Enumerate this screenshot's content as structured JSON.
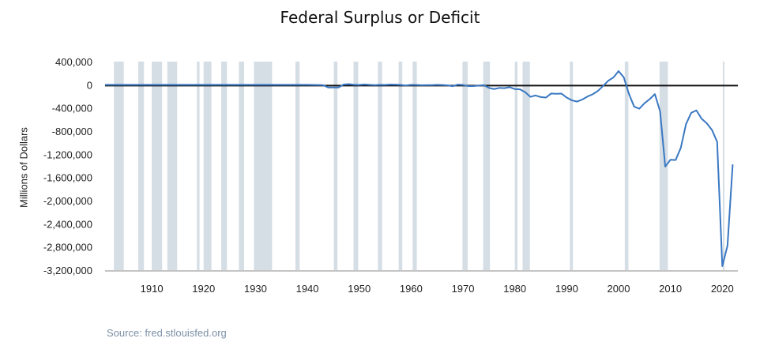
{
  "title": "Federal Surplus or Deficit",
  "source": "Source: fred.stlouisfed.org",
  "colors": {
    "line": "#3a78c2",
    "recession": "#d5dde5",
    "zero_line": "#111111"
  },
  "chart_data": {
    "type": "line",
    "title": "Federal Surplus or Deficit",
    "xlabel": "",
    "ylabel": "Millions of Dollars",
    "xlim": [
      1901,
      2023
    ],
    "ylim": [
      -3200000,
      400000
    ],
    "y_ticks": [
      400000,
      0,
      -400000,
      -800000,
      -1200000,
      -1600000,
      -2000000,
      -2400000,
      -2800000,
      -3200000
    ],
    "y_tick_labels": [
      "400,000",
      "0",
      "-400,000",
      "-800,000",
      "-1,200,000",
      "-1,600,000",
      "-2,000,000",
      "-2,400,000",
      "-2,800,000",
      "-3,200,000"
    ],
    "x_ticks": [
      1910,
      1920,
      1930,
      1940,
      1950,
      1960,
      1970,
      1980,
      1990,
      2000,
      2010,
      2020
    ],
    "x_tick_labels": [
      "1910",
      "1920",
      "1930",
      "1940",
      "1950",
      "1960",
      "1970",
      "1980",
      "1990",
      "2000",
      "2010",
      "2020"
    ],
    "grid": false,
    "recession_periods": [
      [
        1902.7,
        1904.6
      ],
      [
        1907.4,
        1908.5
      ],
      [
        1910.0,
        1912.0
      ],
      [
        1913.0,
        1914.9
      ],
      [
        1918.7,
        1919.2
      ],
      [
        1920.0,
        1921.5
      ],
      [
        1923.4,
        1924.5
      ],
      [
        1926.8,
        1927.8
      ],
      [
        1929.7,
        1933.2
      ],
      [
        1937.7,
        1938.5
      ],
      [
        1945.1,
        1945.8
      ],
      [
        1948.9,
        1949.8
      ],
      [
        1953.6,
        1954.4
      ],
      [
        1957.6,
        1958.3
      ],
      [
        1960.3,
        1961.1
      ],
      [
        1969.9,
        1970.9
      ],
      [
        1973.9,
        1975.2
      ],
      [
        1980.0,
        1980.5
      ],
      [
        1981.5,
        1982.9
      ],
      [
        1990.6,
        1991.2
      ],
      [
        2001.2,
        2001.9
      ],
      [
        2007.9,
        2009.5
      ],
      [
        2020.1,
        2020.4
      ]
    ],
    "series": [
      {
        "values": [
          [
            1901,
            0
          ],
          [
            1905,
            0
          ],
          [
            1915,
            0
          ],
          [
            1925,
            0
          ],
          [
            1935,
            0
          ],
          [
            1940,
            -1000
          ],
          [
            1943,
            -5000
          ],
          [
            1944,
            -47000
          ],
          [
            1946,
            -47000
          ],
          [
            1947,
            4000
          ],
          [
            1948,
            12000
          ],
          [
            1949,
            1000
          ],
          [
            1950,
            -3000
          ],
          [
            1951,
            6000
          ],
          [
            1952,
            -1000
          ],
          [
            1953,
            -6000
          ],
          [
            1954,
            -1000
          ],
          [
            1955,
            -3000
          ],
          [
            1956,
            4000
          ],
          [
            1957,
            3000
          ],
          [
            1958,
            -3000
          ],
          [
            1959,
            -13000
          ],
          [
            1960,
            0
          ],
          [
            1961,
            -3000
          ],
          [
            1962,
            -7000
          ],
          [
            1963,
            -5000
          ],
          [
            1964,
            -6000
          ],
          [
            1965,
            -1000
          ],
          [
            1966,
            -4000
          ],
          [
            1967,
            -9000
          ],
          [
            1968,
            -25000
          ],
          [
            1969,
            3000
          ],
          [
            1970,
            -3000
          ],
          [
            1971,
            -23000
          ],
          [
            1972,
            -23000
          ],
          [
            1973,
            -15000
          ],
          [
            1974,
            -6000
          ],
          [
            1975,
            -53000
          ],
          [
            1976,
            -74000
          ],
          [
            1977,
            -54000
          ],
          [
            1978,
            -59000
          ],
          [
            1979,
            -41000
          ],
          [
            1980,
            -74000
          ],
          [
            1981,
            -79000
          ],
          [
            1982,
            -128000
          ],
          [
            1983,
            -208000
          ],
          [
            1984,
            -185000
          ],
          [
            1985,
            -212000
          ],
          [
            1986,
            -221000
          ],
          [
            1987,
            -150000
          ],
          [
            1988,
            -155000
          ],
          [
            1989,
            -153000
          ],
          [
            1990,
            -221000
          ],
          [
            1991,
            -269000
          ],
          [
            1992,
            -290000
          ],
          [
            1993,
            -255000
          ],
          [
            1994,
            -203000
          ],
          [
            1995,
            -164000
          ],
          [
            1996,
            -107000
          ],
          [
            1997,
            -22000
          ],
          [
            1998,
            69000
          ],
          [
            1999,
            126000
          ],
          [
            2000,
            236000
          ],
          [
            2001,
            128000
          ],
          [
            2002,
            -158000
          ],
          [
            2003,
            -378000
          ],
          [
            2004,
            -413000
          ],
          [
            2005,
            -318000
          ],
          [
            2006,
            -248000
          ],
          [
            2007,
            -161000
          ],
          [
            2008,
            -459000
          ],
          [
            2009,
            -1413000
          ],
          [
            2010,
            -1294000
          ],
          [
            2011,
            -1300000
          ],
          [
            2012,
            -1087000
          ],
          [
            2013,
            -680000
          ],
          [
            2014,
            -485000
          ],
          [
            2015,
            -442000
          ],
          [
            2016,
            -585000
          ],
          [
            2017,
            -665000
          ],
          [
            2018,
            -779000
          ],
          [
            2019,
            -984000
          ],
          [
            2020,
            -3132000
          ],
          [
            2021,
            -2775000
          ],
          [
            2022,
            -1376000
          ]
        ]
      }
    ]
  }
}
